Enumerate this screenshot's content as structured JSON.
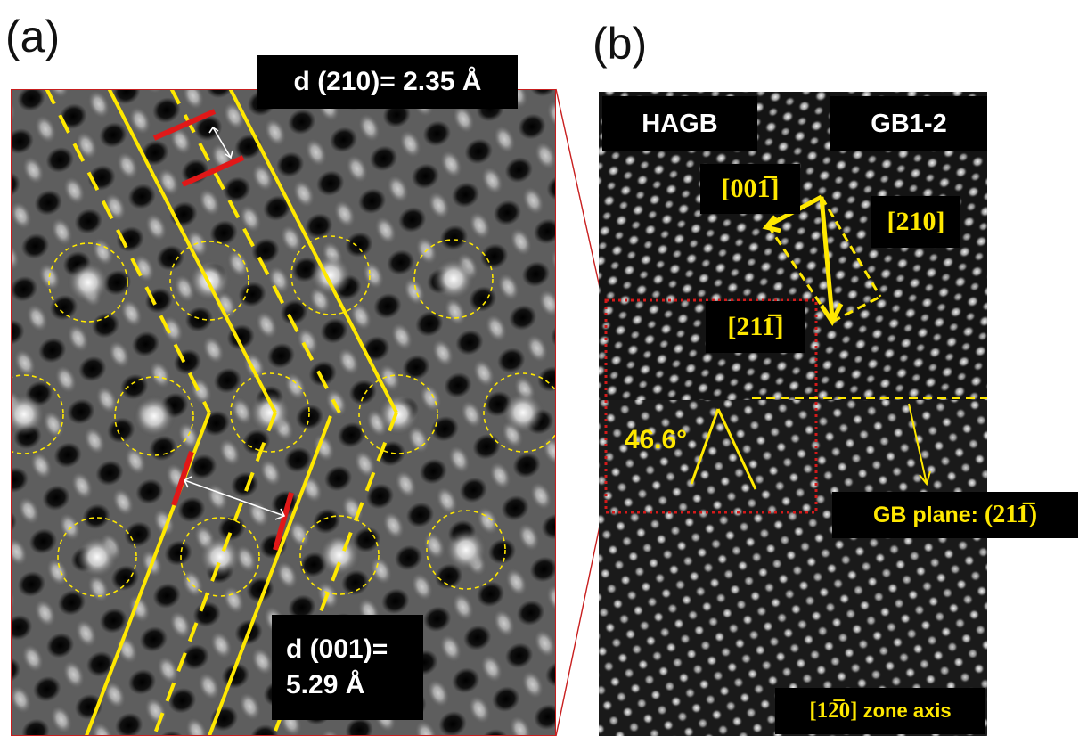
{
  "labels": {
    "panel_a": "(a)",
    "panel_b": "(b)",
    "d210": "d (210)= 2.35 Å",
    "d001_line1": "d (001)=",
    "d001_line2": "5.29 Å",
    "hagb": "HAGB",
    "gb12": "GB1-2",
    "dir_001bar": "[001̅]",
    "dir_210": "[210]",
    "dir_211bar": "[211̅]",
    "angle": "46.6°",
    "gb_plane_prefix": "GB plane: ",
    "gb_plane_index": "(211̅)",
    "zone_axis_index": "[12̅0]",
    "zone_axis_suffix": " zone axis"
  },
  "colors": {
    "annotation_yellow": "#ffe800",
    "marker_red": "#e01818",
    "label_box": "#000000"
  }
}
